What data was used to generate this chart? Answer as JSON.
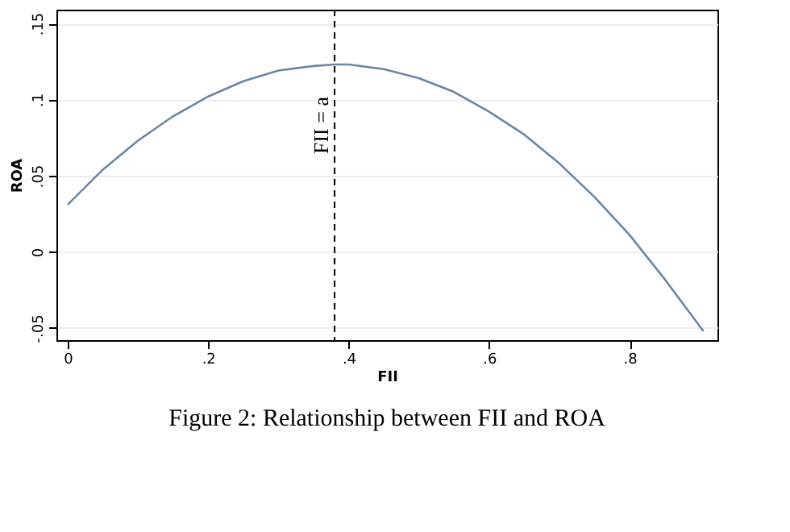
{
  "chart_data": {
    "type": "line",
    "xlabel": "FII",
    "ylabel": "ROA",
    "x": [
      0,
      0.05,
      0.1,
      0.15,
      0.2,
      0.25,
      0.3,
      0.35,
      0.38,
      0.4,
      0.45,
      0.5,
      0.55,
      0.6,
      0.65,
      0.7,
      0.75,
      0.8,
      0.85,
      0.905
    ],
    "series": [
      {
        "color": "#6a86a6",
        "values": [
          0.031,
          0.054,
          0.073,
          0.089,
          0.102,
          0.112,
          0.119,
          0.122,
          0.123,
          0.123,
          0.12,
          0.114,
          0.105,
          0.092,
          0.077,
          0.058,
          0.036,
          0.011,
          -0.018,
          -0.052
        ]
      }
    ],
    "xlim": [
      -0.016,
      0.925
    ],
    "xticks": [
      {
        "value": 0,
        "label": "0"
      },
      {
        "value": 0.2,
        "label": ".2"
      },
      {
        "value": 0.4,
        "label": ".4"
      },
      {
        "value": 0.6,
        "label": ".6"
      },
      {
        "value": 0.8,
        "label": ".8"
      }
    ],
    "ylim": [
      -0.058,
      0.159
    ],
    "yticks": [
      {
        "value": -0.05,
        "label": "-.05"
      },
      {
        "value": 0,
        "label": "0"
      },
      {
        "value": 0.05,
        "label": ".05"
      },
      {
        "value": 0.1,
        "label": ".1"
      },
      {
        "value": 0.15,
        "label": ".15"
      }
    ],
    "grid": "y",
    "ref_lines": [
      {
        "axis": "x",
        "value": 0.38,
        "label": "FII = a",
        "color": "#000000",
        "line_style": "dashed"
      }
    ],
    "annotations": [
      "Figure 2: Relationship between FII and ROA"
    ]
  }
}
